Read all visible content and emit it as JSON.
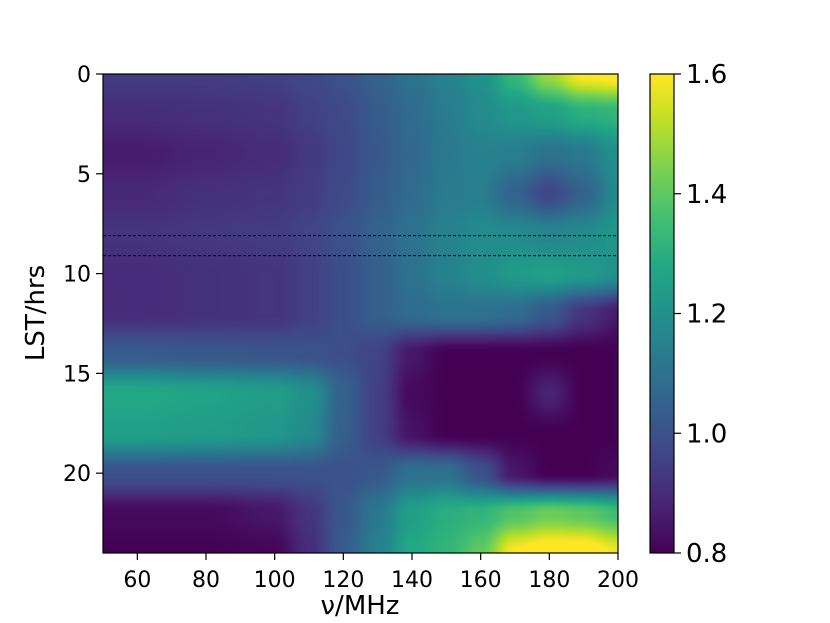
{
  "chart_data": {
    "type": "heatmap",
    "title": "",
    "xlabel": "ν/MHz",
    "ylabel": "LST/hrs",
    "xlim": [
      50,
      200
    ],
    "ylim": [
      0,
      24
    ],
    "y_inverted": true,
    "x_ticks": [
      60,
      80,
      100,
      120,
      140,
      160,
      180,
      200
    ],
    "x_tick_labels": [
      "60",
      "80",
      "100",
      "120",
      "140",
      "160",
      "180",
      "200"
    ],
    "y_ticks": [
      0,
      5,
      10,
      15,
      20
    ],
    "y_tick_labels": [
      "0",
      "5",
      "10",
      "15",
      "20"
    ],
    "colormap": "viridis",
    "colorbar": {
      "range": [
        0.8,
        1.6
      ],
      "ticks": [
        0.8,
        1.0,
        1.2,
        1.4,
        1.6
      ],
      "tick_labels": [
        "0.8",
        "1.0",
        "1.2",
        "1.4",
        "1.6"
      ]
    },
    "horizontal_dashed_lines": [
      8.1,
      9.1
    ],
    "x_samples": [
      50,
      60,
      80,
      100,
      110,
      120,
      130,
      140,
      150,
      160,
      170,
      180,
      190,
      200
    ],
    "y_samples": [
      0,
      2,
      4,
      6,
      8,
      10,
      12,
      14,
      16,
      18,
      20,
      22,
      24
    ],
    "z": [
      [
        0.94,
        0.94,
        0.94,
        0.95,
        0.97,
        1.0,
        1.05,
        1.1,
        1.15,
        1.2,
        1.33,
        1.48,
        1.6,
        1.62
      ],
      [
        0.9,
        0.9,
        0.91,
        0.92,
        0.95,
        0.98,
        1.03,
        1.08,
        1.13,
        1.18,
        1.22,
        1.25,
        1.3,
        1.32
      ],
      [
        0.86,
        0.86,
        0.88,
        0.9,
        0.93,
        0.97,
        1.02,
        1.07,
        1.12,
        1.15,
        1.14,
        1.1,
        1.12,
        1.2
      ],
      [
        0.89,
        0.89,
        0.91,
        0.92,
        0.94,
        0.98,
        1.03,
        1.08,
        1.13,
        1.14,
        1.05,
        0.97,
        1.05,
        1.18
      ],
      [
        0.92,
        0.92,
        0.93,
        0.94,
        0.96,
        1.0,
        1.05,
        1.1,
        1.15,
        1.18,
        1.18,
        1.16,
        1.18,
        1.22
      ],
      [
        0.9,
        0.9,
        0.91,
        0.92,
        0.95,
        0.99,
        1.04,
        1.1,
        1.15,
        1.19,
        1.23,
        1.25,
        1.23,
        1.2
      ],
      [
        0.9,
        0.9,
        0.91,
        0.92,
        0.95,
        0.99,
        1.04,
        1.08,
        1.1,
        1.1,
        1.08,
        1.02,
        0.92,
        0.86
      ],
      [
        1.03,
        1.03,
        1.02,
        1.01,
        1.0,
        0.99,
        0.96,
        0.85,
        0.8,
        0.8,
        0.8,
        0.8,
        0.8,
        0.8
      ],
      [
        1.28,
        1.28,
        1.26,
        1.24,
        1.2,
        1.05,
        0.95,
        0.82,
        0.8,
        0.8,
        0.8,
        0.88,
        0.8,
        0.8
      ],
      [
        1.25,
        1.25,
        1.24,
        1.22,
        1.18,
        1.04,
        0.95,
        0.84,
        0.8,
        0.8,
        0.8,
        0.8,
        0.8,
        0.8
      ],
      [
        1.0,
        1.0,
        1.0,
        1.0,
        1.0,
        1.0,
        1.02,
        1.1,
        1.1,
        1.0,
        0.85,
        0.8,
        0.8,
        0.82
      ],
      [
        0.82,
        0.82,
        0.82,
        0.85,
        0.92,
        1.02,
        1.12,
        1.25,
        1.3,
        1.32,
        1.38,
        1.42,
        1.4,
        1.35
      ],
      [
        0.8,
        0.8,
        0.8,
        0.81,
        0.9,
        1.03,
        1.15,
        1.28,
        1.32,
        1.4,
        1.6,
        1.65,
        1.65,
        1.58
      ]
    ]
  }
}
